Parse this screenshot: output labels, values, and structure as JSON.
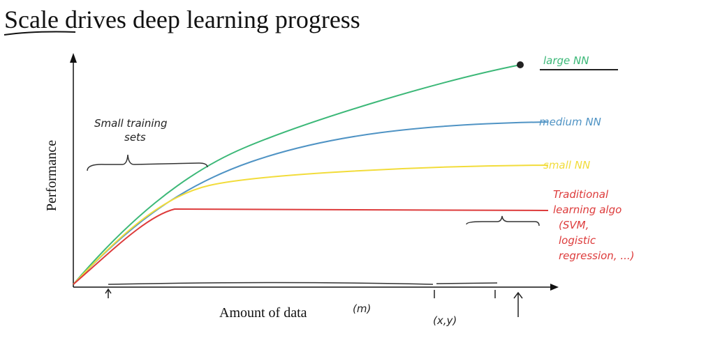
{
  "title": "Scale drives deep learning progress",
  "y_axis_label": "Performance",
  "x_axis_label": "Amount of data",
  "annotations": {
    "small_training_sets": [
      "Small training",
      "sets"
    ],
    "m": "(m)",
    "xy": "(x,y)"
  },
  "curves": [
    {
      "label_lines": [
        "large NN"
      ]
    },
    {
      "label_lines": [
        "medium NN"
      ]
    },
    {
      "label_lines": [
        "small NN"
      ]
    },
    {
      "label_lines": [
        "Traditional",
        "learning algo",
        "(SVM,",
        "logistic",
        "regression, ...)"
      ]
    }
  ]
}
